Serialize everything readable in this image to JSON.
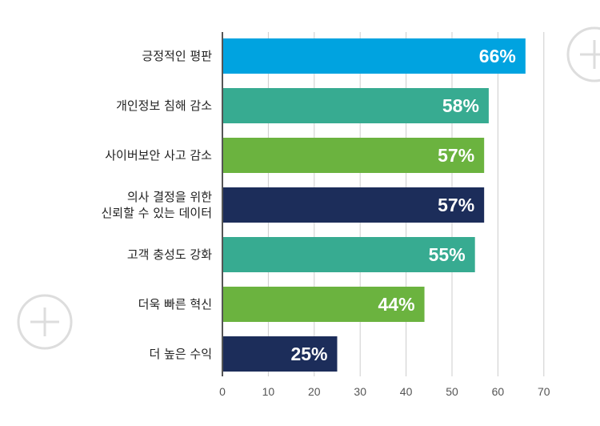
{
  "chart_data": {
    "type": "bar",
    "orientation": "horizontal",
    "categories": [
      [
        "긍정적인 평판"
      ],
      [
        "개인정보 침해 감소"
      ],
      [
        "사이버보안 사고 감소"
      ],
      [
        "의사 결정을 위한",
        "신뢰할 수 있는 데이터"
      ],
      [
        "고객 충성도 강화"
      ],
      [
        "더욱 빠른 혁신"
      ],
      [
        "더 높은 수익"
      ]
    ],
    "values": [
      66,
      58,
      57,
      57,
      55,
      44,
      25
    ],
    "data_labels": [
      "66%",
      "58%",
      "57%",
      "57%",
      "55%",
      "44%",
      "25%"
    ],
    "colors": [
      "#00a3e0",
      "#37ab91",
      "#6bb33f",
      "#1c2d5a",
      "#37ab91",
      "#6bb33f",
      "#1c2d5a"
    ],
    "xlim": [
      0,
      70
    ],
    "xticks": [
      0,
      10,
      20,
      30,
      40,
      50,
      60,
      70
    ],
    "grid": true,
    "title": "",
    "xlabel": "",
    "ylabel": ""
  },
  "decorations": {
    "icons": [
      "plus-circle-icon",
      "plus-circle-icon"
    ],
    "icon_color": "#dddddd"
  }
}
